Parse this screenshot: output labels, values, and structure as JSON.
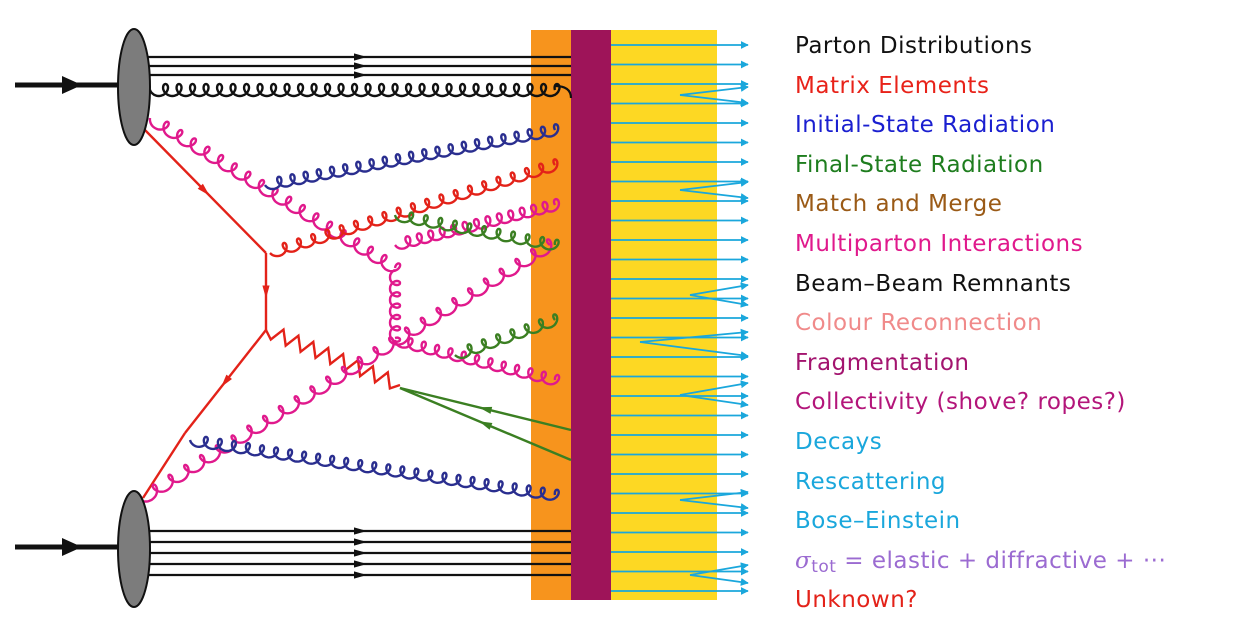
{
  "colors": {
    "quark": "#111111",
    "hard": "#e32219",
    "isr": "#2a2e8f",
    "fsr": "#3b7f22",
    "mpi": "#e0198c",
    "hadron": "#1aa7dc",
    "band_cr": "#f7941d",
    "band_frag": "#9e1459",
    "band_decay": "#fdd823",
    "beam_blob": "#7c7c7c"
  },
  "legend": [
    {
      "label": "Parton Distributions",
      "color": "#111111"
    },
    {
      "label": "Matrix Elements",
      "color": "#e82219"
    },
    {
      "label": "Initial-State Radiation",
      "color": "#1a1fd0"
    },
    {
      "label": "Final-State Radiation",
      "color": "#1e7d1e"
    },
    {
      "label": "Match and Merge",
      "color": "#9a5a16"
    },
    {
      "label": "Multiparton Interactions",
      "color": "#e0198c"
    },
    {
      "label": "Beam–Beam Remnants",
      "color": "#111111"
    },
    {
      "label": "Colour Reconnection",
      "color": "#f08a8a"
    },
    {
      "label": "Fragmentation",
      "color": "#a3146f"
    },
    {
      "label": "Collectivity (shove? ropes?)",
      "color": "#b3157a"
    },
    {
      "label": "Decays",
      "color": "#1aa7dc"
    },
    {
      "label": "Rescattering",
      "color": "#1aa7dc"
    },
    {
      "label": "Bose–Einstein",
      "color": "#1aa7dc"
    },
    {
      "sigma": "σ",
      "sub": "tot",
      "label": " = elastic + diffractive + ···",
      "color": "#9b6bd1"
    },
    {
      "label": "Unknown?",
      "color": "#e32219"
    }
  ]
}
